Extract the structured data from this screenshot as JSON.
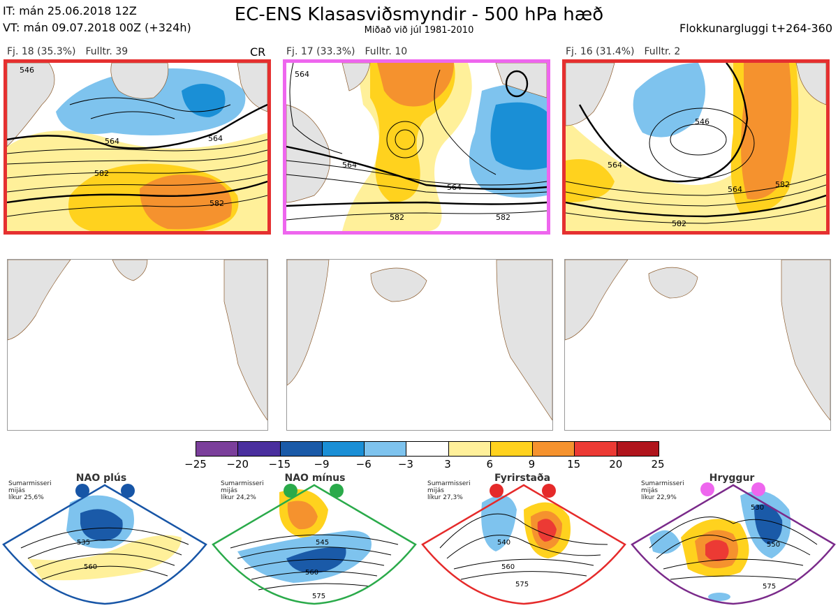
{
  "header": {
    "it_line": "IT: mán 25.06.2018 12Z",
    "vt_line": "VT: mán 09.07.2018 00Z  (+324h)",
    "title": "EC-ENS Klasasviðsmyndir - 500 hPa hæð",
    "subtitle": "Miðað við júl 1981-2010",
    "window": "Flokkunargluggi t+264-360"
  },
  "panels": [
    {
      "fj": "Fj. 18 (35.3%)",
      "fulltr": "Fulltr. 39",
      "tag": "CR",
      "border_color": "#e53030",
      "contours": [
        "564",
        "564",
        "582",
        "582",
        "546"
      ]
    },
    {
      "fj": "Fj. 17 (33.3%)",
      "fulltr": "Fulltr. 10",
      "tag": "",
      "border_color": "#ee66ee",
      "contours": [
        "564",
        "564",
        "564",
        "582",
        "582"
      ]
    },
    {
      "fj": "Fj. 16 (31.4%)",
      "fulltr": "Fulltr. 2",
      "tag": "",
      "border_color": "#e53030",
      "contours": [
        "546",
        "564",
        "564",
        "582",
        "582"
      ]
    }
  ],
  "colorbar": {
    "ticks": [
      "−25",
      "−20",
      "−15",
      "−9",
      "−6",
      "−3",
      "3",
      "6",
      "9",
      "15",
      "20",
      "25"
    ],
    "colors": [
      "#7b3f9b",
      "#4a2f9e",
      "#1a5aa8",
      "#1a8fd6",
      "#7ec3ee",
      "#ffffff",
      "#fff09a",
      "#ffd21e",
      "#f5922e",
      "#ec3a34",
      "#b0141c"
    ]
  },
  "regimes": [
    {
      "name": "NAO plús",
      "season": "Sumarmisseri",
      "desc": "mijás",
      "prob": "líkur 25,6%",
      "dot_color": "#1755a6",
      "border_color": "#1755a6",
      "contours": [
        "535",
        "560"
      ]
    },
    {
      "name": "NAO mínus",
      "season": "Sumarmisseri",
      "desc": "mijás",
      "prob": "líkur 24,2%",
      "dot_color": "#2aaa4a",
      "border_color": "#2aaa4a",
      "contours": [
        "545",
        "560",
        "575"
      ]
    },
    {
      "name": "Fyrirstaða",
      "season": "Sumarmisseri",
      "desc": "mijás",
      "prob": "líkur 27,3%",
      "dot_color": "#e52a2a",
      "border_color": "#e52a2a",
      "contours": [
        "540",
        "560",
        "575"
      ]
    },
    {
      "name": "Hryggur",
      "season": "Sumarmisseri",
      "desc": "mijás",
      "prob": "líkur 22,9%",
      "dot_color": "#ee66ee",
      "border_color": "#7a2a8a",
      "contours": [
        "530",
        "550",
        "575"
      ]
    }
  ]
}
